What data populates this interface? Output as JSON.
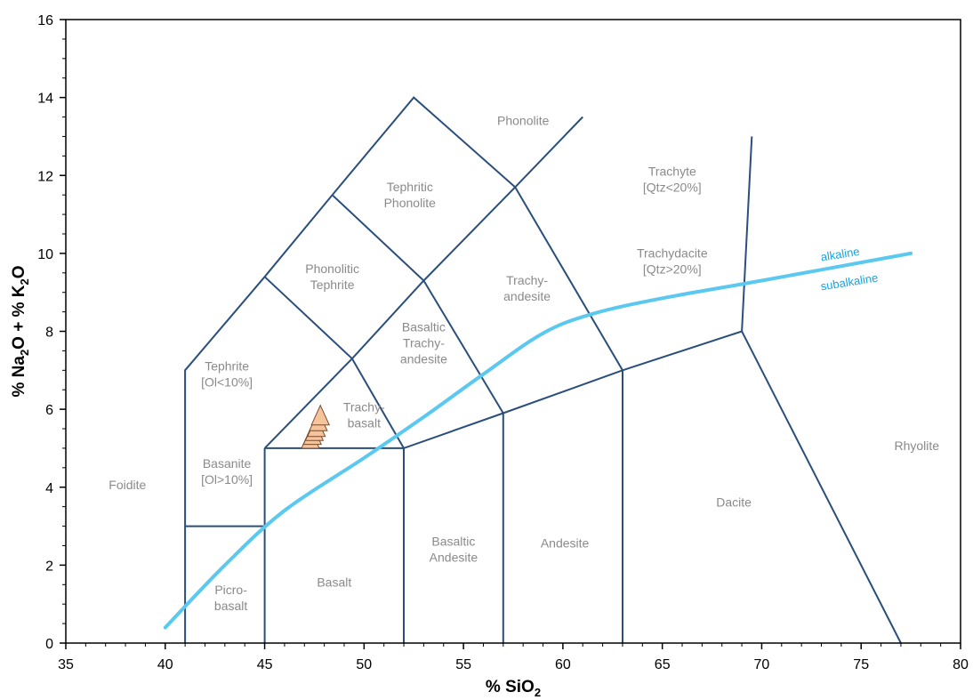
{
  "chart_data": {
    "type": "scatter",
    "title": "",
    "xlabel": {
      "prefix": "% SiO",
      "sub": "2"
    },
    "ylabel": {
      "parts": [
        "% Na",
        "2",
        "O + % K",
        "2",
        "O"
      ]
    },
    "xlim": [
      35,
      80
    ],
    "ylim": [
      0,
      16
    ],
    "x_ticks": [
      35,
      40,
      45,
      50,
      55,
      60,
      65,
      70,
      75,
      80
    ],
    "y_ticks": [
      0,
      2,
      4,
      6,
      8,
      10,
      12,
      14,
      16
    ],
    "x_tick_labels": [
      "35",
      "40",
      "45",
      "50",
      "55",
      "60",
      "65",
      "70",
      "75",
      "80"
    ],
    "y_tick_labels": [
      "0",
      "2",
      "4",
      "6",
      "8",
      "10",
      "12",
      "14",
      "16"
    ],
    "grid": false,
    "field_boundaries": [
      [
        [
          41,
          0
        ],
        [
          41,
          7
        ],
        [
          45,
          9.4
        ],
        [
          48.4,
          11.5
        ],
        [
          52.5,
          14
        ],
        [
          57.6,
          11.7
        ],
        [
          63,
          7
        ],
        [
          69,
          8
        ],
        [
          77,
          0
        ]
      ],
      [
        [
          45,
          0
        ],
        [
          45,
          5
        ]
      ],
      [
        [
          41,
          3
        ],
        [
          45,
          3
        ]
      ],
      [
        [
          45,
          5
        ],
        [
          52,
          5
        ],
        [
          57,
          5.9
        ],
        [
          63,
          7
        ]
      ],
      [
        [
          52,
          0
        ],
        [
          52,
          5
        ]
      ],
      [
        [
          57,
          0
        ],
        [
          57,
          5.9
        ]
      ],
      [
        [
          63,
          0
        ],
        [
          63,
          7
        ]
      ],
      [
        [
          45,
          5
        ],
        [
          49.4,
          7.3
        ],
        [
          53,
          9.3
        ],
        [
          57.6,
          11.7
        ]
      ],
      [
        [
          52,
          5
        ],
        [
          49.4,
          7.3
        ],
        [
          45,
          9.4
        ]
      ],
      [
        [
          57,
          5.9
        ],
        [
          53,
          9.3
        ],
        [
          48.4,
          11.5
        ]
      ],
      [
        [
          57.6,
          11.7
        ],
        [
          61,
          13.5
        ]
      ],
      [
        [
          69,
          8
        ],
        [
          69.5,
          13
        ]
      ]
    ],
    "field_labels": [
      {
        "lines": [
          "Phonolite"
        ],
        "x": 58,
        "y": 13.3
      },
      {
        "lines": [
          "Trachyte",
          "[Qtz<20%]"
        ],
        "x": 65.5,
        "y": 12
      },
      {
        "lines": [
          "Tephritic",
          "Phonolite"
        ],
        "x": 52.3,
        "y": 11.6
      },
      {
        "lines": [
          "Trachydacite",
          "[Qtz>20%]"
        ],
        "x": 65.5,
        "y": 9.9
      },
      {
        "lines": [
          "Phonolitic",
          "Tephrite"
        ],
        "x": 48.4,
        "y": 9.5
      },
      {
        "lines": [
          "Trachy-",
          "andesite"
        ],
        "x": 58.2,
        "y": 9.2
      },
      {
        "lines": [
          "Basaltic",
          "Trachy-",
          "andesite"
        ],
        "x": 53,
        "y": 8
      },
      {
        "lines": [
          "Tephrite",
          "[Ol<10%]"
        ],
        "x": 43.1,
        "y": 7
      },
      {
        "lines": [
          "Trachy-",
          "basalt"
        ],
        "x": 50,
        "y": 5.95
      },
      {
        "lines": [
          "Basanite",
          "[Ol>10%]"
        ],
        "x": 43.1,
        "y": 4.5
      },
      {
        "lines": [
          "Foidite"
        ],
        "x": 38.1,
        "y": 3.95
      },
      {
        "lines": [
          "Dacite"
        ],
        "x": 68.6,
        "y": 3.5
      },
      {
        "lines": [
          "Rhyolite"
        ],
        "x": 77.8,
        "y": 4.95
      },
      {
        "lines": [
          "Andesite"
        ],
        "x": 60.1,
        "y": 2.45
      },
      {
        "lines": [
          "Basaltic",
          "Andesite"
        ],
        "x": 54.5,
        "y": 2.5
      },
      {
        "lines": [
          "Basalt"
        ],
        "x": 48.5,
        "y": 1.45
      },
      {
        "lines": [
          "Picro-",
          "basalt"
        ],
        "x": 43.3,
        "y": 1.25
      }
    ],
    "series": [
      {
        "name": "alkaline-subalkaline boundary",
        "type": "line",
        "color": "#5bc8f0",
        "points": [
          [
            40,
            0.4
          ],
          [
            43,
            2
          ],
          [
            46,
            3.4
          ],
          [
            50,
            4.75
          ],
          [
            53,
            5.8
          ],
          [
            56,
            6.9
          ],
          [
            59,
            7.95
          ],
          [
            61.5,
            8.45
          ],
          [
            65,
            8.85
          ],
          [
            70,
            9.3
          ],
          [
            77.5,
            10
          ]
        ]
      },
      {
        "name": "samples",
        "type": "scatter",
        "marker": "triangle",
        "color": "#f5c39c",
        "points": [
          [
            47.3,
            5.25
          ],
          [
            47.4,
            5.35
          ],
          [
            47.5,
            5.45
          ],
          [
            47.6,
            5.55
          ],
          [
            47.7,
            5.7
          ],
          [
            47.8,
            5.85
          ]
        ]
      }
    ],
    "curve_labels": [
      {
        "text": "alkaline",
        "x": 73,
        "y": 9.8
      },
      {
        "text": "subalkaline",
        "x": 73,
        "y": 9.05
      }
    ]
  }
}
